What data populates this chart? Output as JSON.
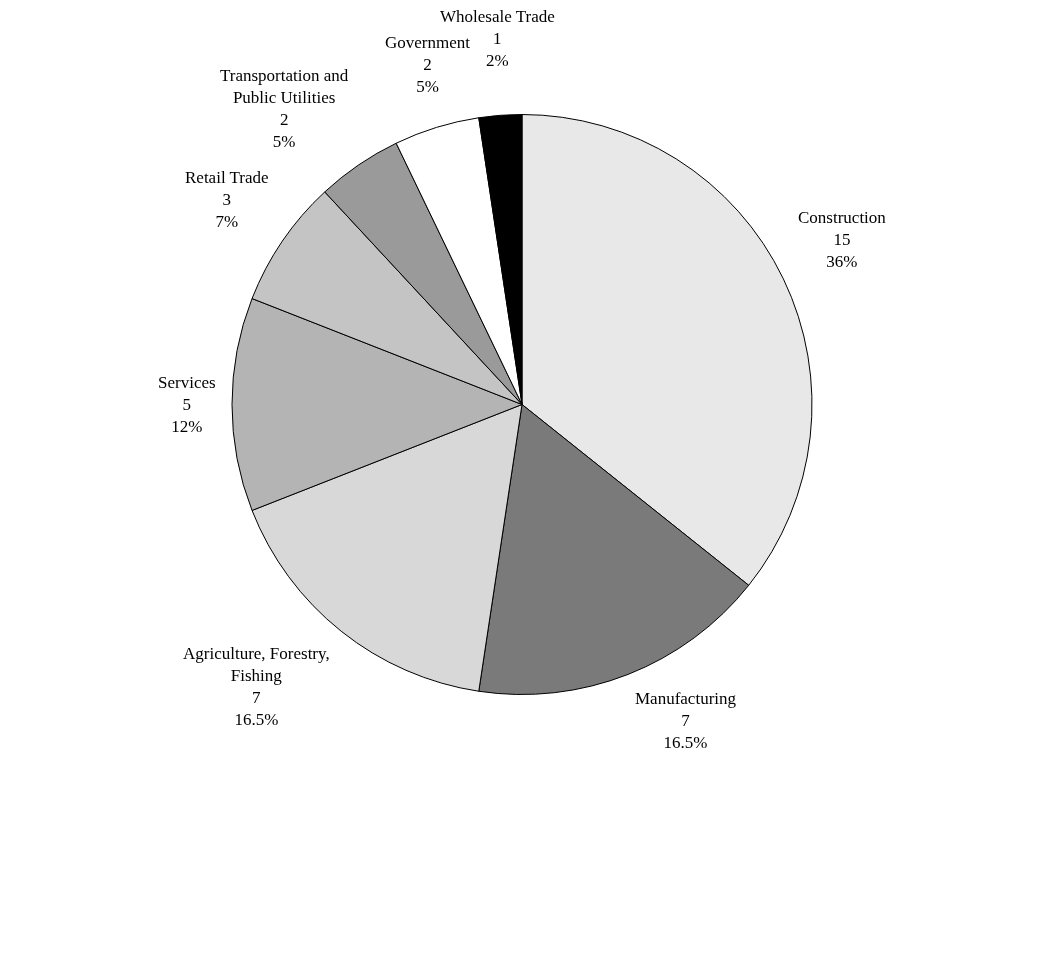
{
  "chart_data": {
    "type": "pie",
    "categories": [
      "Construction",
      "Manufacturing",
      "Agriculture, Forestry,\nFishing",
      "Services",
      "Retail Trade",
      "Transportation and\nPublic Utilities",
      "Government",
      "Wholesale Trade"
    ],
    "values": [
      15,
      7,
      7,
      5,
      3,
      2,
      2,
      1
    ],
    "value_labels": [
      "15\n36%",
      "7\n16.5%",
      "7\n16.5%",
      "5\n12%",
      "3\n7%",
      "2\n5%",
      "2\n5%",
      "1\n2%"
    ],
    "colors": [
      "#e8e8e8",
      "#7a7a7a",
      "#d8d8d8",
      "#b4b4b4",
      "#c4c4c4",
      "#9a9a9a",
      "#ffffff",
      "#000000"
    ],
    "legend": false
  }
}
